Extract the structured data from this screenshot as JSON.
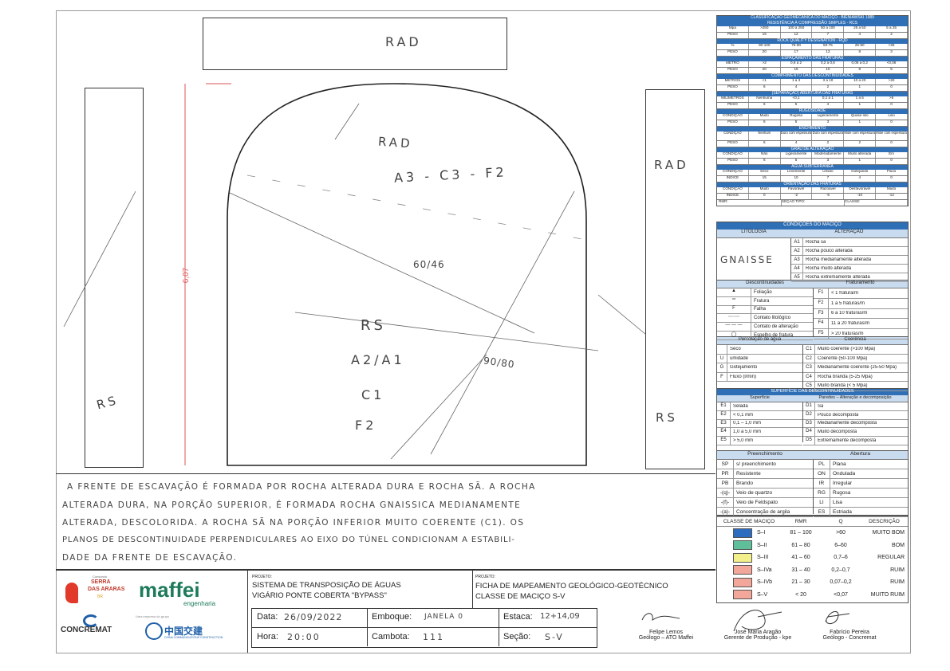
{
  "drawing": {
    "top_label": "RAD",
    "face_rad": "RAD",
    "face_class": "A3 - C3 - F2",
    "face_angle1": "60/46",
    "face_rs": "RS",
    "face_a": "A2/A1",
    "face_c": "C1",
    "face_f": "F2",
    "face_angle2": "90/80",
    "height": "6,07",
    "left_rs": "RS",
    "right_rad": "RAD",
    "right_rs": "RS"
  },
  "description": [
    "A FRENTE DE ESCAVAÇÃO É FORMADA POR ROCHA ALTERADA DURA E ROCHA SÃ. A ROCHA",
    "ALTERADA DURA, NA PORÇÃO SUPERIOR, É FORMADA ROCHA GNAISSICA MEDIANAMENTE",
    "ALTERADA, DESCOLORIDA. A ROCHA SÃ NA PORÇÃO INFERIOR MUITO COERENTE (C1). OS",
    "PLANOS DE DESCONTINUIDADE PERPENDICULARES AO EIXO DO TÚNEL CONDICIONAM A ESTABILI-",
    "DADE DA FRENTE DE ESCAVAÇÃO."
  ],
  "rmr": {
    "title": "CLASSIFICAÇÃO GEOMECÂNICA DO MACIÇO - BIENIAWSKI 1989",
    "groups": [
      {
        "title": "RESISTÊNCIA À COMPRESSÃO SIMPLES - RCS",
        "rows": [
          [
            "Mpa",
            ">250",
            "100 a 250",
            "50 a 100",
            "25 a 50",
            "5 a 25"
          ],
          [
            "PESO",
            "15",
            "12",
            "7",
            "4",
            "2"
          ]
        ]
      },
      {
        "title": "ROCK QUALITY DESIGNATION - RQD",
        "rows": [
          [
            "%",
            "90-100",
            "75-90",
            "50-75",
            "25-50",
            "<25"
          ],
          [
            "PESO",
            "20",
            "17",
            "13",
            "8",
            "3"
          ]
        ]
      },
      {
        "title": "ESPAÇAMENTO DAS FRATURAS",
        "rows": [
          [
            "METRO",
            ">2",
            "0,6 a 2",
            "0,2 a 0,6",
            "0,06 a 0,2",
            "<0,06"
          ],
          [
            "PESO",
            "20",
            "15",
            "10",
            "8",
            "5"
          ]
        ]
      },
      {
        "title": "COMPRIMENTO DAS DESCONTINUIDADES",
        "rows": [
          [
            "METROS",
            "<1",
            "1 a 3",
            "3 a 10",
            "10 a 20",
            ">20"
          ],
          [
            "PESO",
            "6",
            "4",
            "2",
            "1",
            "0"
          ]
        ]
      },
      {
        "title": "(SEPARAÇÃO) ABERTURA DAS FRATURAS",
        "rows": [
          [
            "MILÍMETROS",
            "Nenhuma",
            "<0,1",
            "0,1 a 1",
            "1 a 5",
            ">5"
          ],
          [
            "PESO",
            "6",
            "5",
            "4",
            "1",
            "0"
          ]
        ]
      },
      {
        "title": "RUGOSIDADE",
        "rows": [
          [
            "CONDIÇÃO",
            "Muito",
            "Rugosa",
            "Ligeiramente",
            "Quase liso",
            "Liso"
          ],
          [
            "PESO",
            "6",
            "5",
            "3",
            "1",
            "0"
          ]
        ]
      },
      {
        "title": "ENCHIMENTO",
        "rows": [
          [
            "CONDIÇÃO",
            "Nenhum",
            "Duro com espessura",
            "Duro com espessura",
            "Mole com espessura",
            "Mole com espessura"
          ],
          [
            "PESO",
            "6",
            "4",
            "2",
            "2",
            "0"
          ]
        ]
      },
      {
        "title": "GRAU DE ALTERAÇÃO",
        "rows": [
          [
            "CONDIÇÃO",
            "Não",
            "Ligeiramente",
            "Moderadamente",
            "Muito alterada",
            "Em"
          ],
          [
            "PESO",
            "6",
            "5",
            "3",
            "1",
            "0"
          ]
        ]
      },
      {
        "title": "ÁGUA SUBTERRÂNEA",
        "rows": [
          [
            "CONDIÇÃO",
            "Seco",
            "Levemente",
            "Úmido",
            "Gotejando",
            "Fluxo"
          ],
          [
            "ÍNDICE",
            "15",
            "10",
            "7",
            "4",
            "0"
          ]
        ]
      },
      {
        "title": "ORIENTAÇÃO DAS FRATURAS",
        "rows": [
          [
            "CONDIÇÃO",
            "Muito",
            "Favorável",
            "Razoável",
            "Desfavorável",
            "Muito"
          ],
          [
            "ÍNDICE",
            "0",
            "-2",
            "-5",
            "-10",
            "-12"
          ]
        ]
      }
    ],
    "footer": [
      "RMR:",
      "SEÇÃO TIPO:",
      "CLASSE:"
    ]
  },
  "massif": {
    "title": "CONDIÇÕES DO MACIÇO",
    "lithology_header": "LITOLOGIA",
    "alteration_header": "ALTERAÇÃO",
    "lithology_value": "GNAISSE",
    "alterations": [
      [
        "A1",
        "Rocha sã"
      ],
      [
        "A2",
        "Rocha pouco alterada"
      ],
      [
        "A3",
        "Rocha medianamente alterada"
      ],
      [
        "A4",
        "Rocha muito alterada"
      ],
      [
        "A5",
        "Rocha extremamente alterada"
      ]
    ],
    "disc_header": "Descontinuidades",
    "frat_header": "Fraturamento",
    "discontinuities": [
      "Foliação",
      "Fratura",
      "Falha",
      "Contato litológico",
      "Contato de alteração",
      "Espelho de fratura"
    ],
    "fractures": [
      [
        "F1",
        "< 1 fratura/m"
      ],
      [
        "F2",
        "1 a 5 fraturas/m"
      ],
      [
        "F3",
        "6 a 10 fraturas/m"
      ],
      [
        "F4",
        "11 a 20 fraturas/m"
      ],
      [
        "F5",
        "> 20 fraturas/m"
      ]
    ],
    "water_header": "Percolação de água",
    "coh_header": "Coerência",
    "water": [
      [
        "",
        "Seco"
      ],
      [
        "U",
        "umidade"
      ],
      [
        "G",
        "Gotejamento"
      ],
      [
        "F",
        "Fluxo (l/min)"
      ]
    ],
    "coherence": [
      [
        "C1",
        "Muito coerente (>100 Mpa)"
      ],
      [
        "C2",
        "Coerente (50-100 Mpa)"
      ],
      [
        "C3",
        "Medianamente coerente (25-50 Mpa)"
      ],
      [
        "C4",
        "Rocha branda (5-25 Mpa)"
      ],
      [
        "C5",
        "Muito branda (< 5 Mpa)"
      ]
    ],
    "surface_title": "SUPERFÍCIE DAS DESCONTINUIDADES",
    "surf_header": "Superfície",
    "walls_header": "Paredes – Alteração e decomposição",
    "surfaces": [
      [
        "E1",
        "Selada"
      ],
      [
        "E2",
        "< 0,1 mm"
      ],
      [
        "E3",
        "0,1 – 1,0 mm"
      ],
      [
        "E4",
        "1,0 a 5,0 mm"
      ],
      [
        "E5",
        "> 5,0 mm"
      ]
    ],
    "walls": [
      [
        "D1",
        "Sã"
      ],
      [
        "D2",
        "Pouco decomposta"
      ],
      [
        "D3",
        "Medianamente decomposta"
      ],
      [
        "D4",
        "Muito decomposta"
      ],
      [
        "D5",
        "Extremamente decomposta"
      ]
    ],
    "fill_header": "Preenchimento",
    "open_header": "Abertura",
    "fills": [
      [
        "SP",
        "s/ preenchimento"
      ],
      [
        "PR",
        "Resistente"
      ],
      [
        "PB",
        "Brando"
      ],
      [
        "-(q)-",
        "Veio de quartzo"
      ],
      [
        "-(f)-",
        "Veio de Feldspato"
      ],
      [
        "-(a)-",
        "Concentração de argila"
      ]
    ],
    "openings": [
      [
        "PL",
        "Plana"
      ],
      [
        "ON",
        "Ondulada"
      ],
      [
        "IR",
        "Irregular"
      ],
      [
        "RG",
        "Rugosa"
      ],
      [
        "LI",
        "Lisa"
      ],
      [
        "ES",
        "Estriada"
      ]
    ]
  },
  "classes": {
    "headers": [
      "CLASSE DE MACIÇO",
      "RMR",
      "Q",
      "DESCRIÇÃO"
    ],
    "rows": [
      {
        "cls": "S–I",
        "rmr": "81 – 100",
        "q": ">60",
        "desc": "MUITO BOM",
        "color": "#2e6cc0"
      },
      {
        "cls": "S–II",
        "rmr": "61 – 80",
        "q": "6–60",
        "desc": "BOM",
        "color": "#5fbf9a"
      },
      {
        "cls": "S–III",
        "rmr": "41 – 60",
        "q": "0,7–6",
        "desc": "REGULAR",
        "color": "#f3ef8a"
      },
      {
        "cls": "S–IVa",
        "rmr": "31 – 40",
        "q": "0,2–0,7",
        "desc": "RUIM",
        "color": "#f2a79a"
      },
      {
        "cls": "S–IVb",
        "rmr": "21 – 30",
        "q": "0,07–0,2",
        "desc": "RUIM",
        "color": "#f2a79a"
      },
      {
        "cls": "S–V",
        "rmr": "< 20",
        "q": "<0,07",
        "desc": "MUITO RUIM",
        "color": "#f2a79a"
      }
    ]
  },
  "footer": {
    "logo1_small": "Consórcio",
    "logo1_line1": "SERRA",
    "logo1_line2": "DAS ARARAS",
    "logo1_tag": "BR",
    "maffei": "maffei",
    "maffei_sub": "engenharia",
    "concremat": "CONCREMAT",
    "group_small": "Uma empresa do grupo",
    "cccc": "中国交建",
    "cccc_sub": "CHINA COMMUNICATIONS CONSTRUCTION",
    "project_label": "PROJETO:",
    "project_line1": "SISTEMA DE TRANSPOSIÇÃO DE ÁGUAS",
    "project_line2": "VIGÁRIO PONTE COBERTA \"BYPASS\"",
    "sheet_label": "PROJETO:",
    "sheet_line1": "FICHA DE MAPEAMENTO GEOLÓGICO-GEOTÉCNICO",
    "sheet_line2": "CLASSE DE MACIÇO S-V",
    "data_label": "Data:",
    "data_value": "26/09/2022",
    "emboque_label": "Emboque:",
    "emboque_value": "JANELA 0",
    "estaca_label": "Estaca:",
    "estaca_value": "12+14,09",
    "hora_label": "Hora:",
    "hora_value": "20:00",
    "cambota_label": "Cambota:",
    "cambota_value": "111",
    "secao_label": "Seção:",
    "secao_value": "S-V",
    "sig1_name": "Felipe Lemos",
    "sig1_role": "Geólogo – ATO Maffei",
    "sig2_name": "José Maria Aragão",
    "sig2_role": "Gerente de Produção - kpe",
    "sig3_name": "Fabrício Pereira",
    "sig3_role": "Geólogo - Concremat"
  }
}
